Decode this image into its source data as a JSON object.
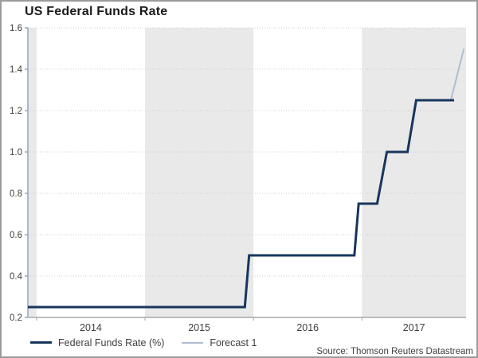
{
  "chart_data": {
    "type": "line",
    "title": "US Federal Funds Rate",
    "xlabel": "",
    "ylabel": "",
    "x_axis": {
      "range": [
        2013.92,
        2017.96
      ],
      "tick_positions": [
        2014,
        2015,
        2016,
        2017
      ],
      "tick_labels": [
        "2014",
        "2015",
        "2016",
        "2017"
      ]
    },
    "y_axis": {
      "range": [
        0.2,
        1.6
      ],
      "tick_step": 0.2,
      "tick_labels": [
        "0.2",
        "0.4",
        "0.6",
        "0.8",
        "1.0",
        "1.2",
        "1.4",
        "1.6"
      ]
    },
    "grid": {
      "horizontal_dotted": true,
      "color": "#d0d0d0"
    },
    "bands": {
      "color": "#e9e9e9",
      "intervals": [
        [
          2013.92,
          2014
        ],
        [
          2015,
          2016
        ],
        [
          2017,
          2017.96
        ]
      ]
    },
    "series": [
      {
        "name": "Federal Funds Rate (%)",
        "color": "#17365d",
        "stroke_width": 3,
        "points": [
          [
            2013.92,
            0.25
          ],
          [
            2015.92,
            0.25
          ],
          [
            2015.96,
            0.5
          ],
          [
            2016.93,
            0.5
          ],
          [
            2016.97,
            0.75
          ],
          [
            2017.14,
            0.75
          ],
          [
            2017.23,
            1.0
          ],
          [
            2017.42,
            1.0
          ],
          [
            2017.5,
            1.25
          ],
          [
            2017.85,
            1.25
          ]
        ]
      },
      {
        "name": "Forecast 1",
        "color": "#b0bdd0",
        "stroke_width": 2,
        "points": [
          [
            2017.82,
            1.25
          ],
          [
            2017.94,
            1.5
          ]
        ]
      }
    ],
    "legend_position": "bottom-left"
  },
  "legend": {
    "items": [
      {
        "label": "Federal Funds Rate (%)",
        "swatch_color": "#17365d"
      },
      {
        "label": "Forecast 1",
        "swatch_color": "#b0bdd0"
      }
    ]
  },
  "footer": {
    "source": "Source: Thomson Reuters Datastream"
  },
  "colors": {
    "actual_line": "#17365d",
    "forecast_line": "#b0bdd0",
    "band_fill": "#e9e9e9",
    "y_axis": "#92a6c2",
    "x_axis": "#a8a8a8",
    "grid": "#d0d0d0",
    "text": "#404040",
    "border": "#9b9b9b"
  }
}
